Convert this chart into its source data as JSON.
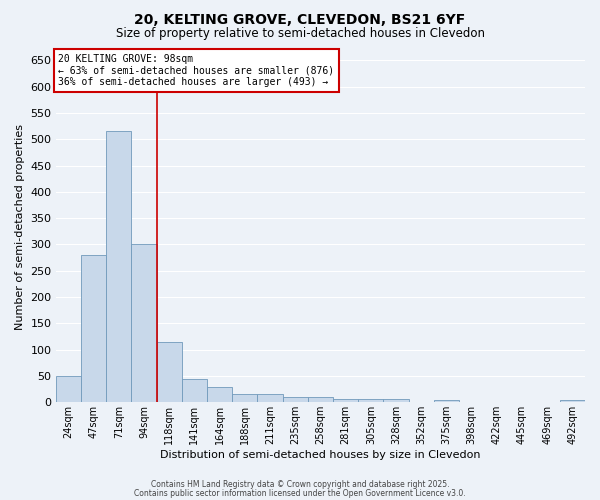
{
  "title1": "20, KELTING GROVE, CLEVEDON, BS21 6YF",
  "title2": "Size of property relative to semi-detached houses in Clevedon",
  "xlabel": "Distribution of semi-detached houses by size in Clevedon",
  "ylabel": "Number of semi-detached properties",
  "categories": [
    "24sqm",
    "47sqm",
    "71sqm",
    "94sqm",
    "118sqm",
    "141sqm",
    "164sqm",
    "188sqm",
    "211sqm",
    "235sqm",
    "258sqm",
    "281sqm",
    "305sqm",
    "328sqm",
    "352sqm",
    "375sqm",
    "398sqm",
    "422sqm",
    "445sqm",
    "469sqm",
    "492sqm"
  ],
  "values": [
    50,
    280,
    515,
    300,
    115,
    45,
    30,
    15,
    15,
    10,
    10,
    7,
    7,
    7,
    0,
    4,
    0,
    0,
    0,
    0,
    5
  ],
  "bar_color": "#c8d8ea",
  "bar_edgecolor": "#7099bb",
  "redline_x": 3.5,
  "annotation_title": "20 KELTING GROVE: 98sqm",
  "annotation_line1": "← 63% of semi-detached houses are smaller (876)",
  "annotation_line2": "36% of semi-detached houses are larger (493) →",
  "annotation_box_facecolor": "#ffffff",
  "annotation_box_edgecolor": "#cc0000",
  "redline_color": "#cc0000",
  "ylim": [
    0,
    665
  ],
  "yticks": [
    0,
    50,
    100,
    150,
    200,
    250,
    300,
    350,
    400,
    450,
    500,
    550,
    600,
    650
  ],
  "background_color": "#edf2f8",
  "grid_color": "#ffffff",
  "footer1": "Contains HM Land Registry data © Crown copyright and database right 2025.",
  "footer2": "Contains public sector information licensed under the Open Government Licence v3.0."
}
